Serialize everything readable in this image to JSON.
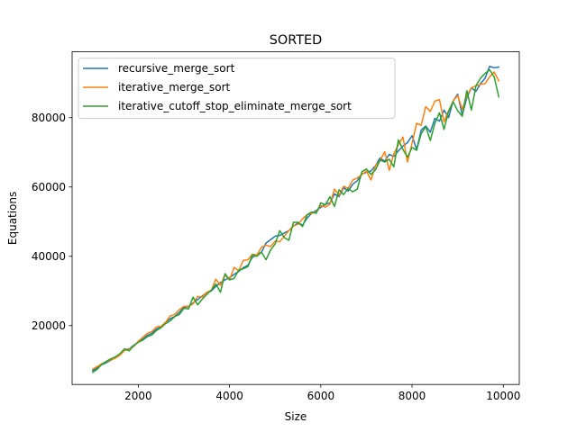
{
  "chart_data": {
    "type": "line",
    "title": "SORTED",
    "xlabel": "Size",
    "ylabel": "Equations",
    "xlim": [
      550,
      10350
    ],
    "ylim": [
      3000,
      99000
    ],
    "xticks": [
      2000,
      4000,
      6000,
      8000,
      10000
    ],
    "yticks": [
      20000,
      40000,
      60000,
      80000
    ],
    "grid": false,
    "legend_position": "upper-left",
    "x": [
      1000,
      1100,
      1200,
      1300,
      1400,
      1500,
      1600,
      1700,
      1800,
      1900,
      2000,
      2100,
      2200,
      2300,
      2400,
      2500,
      2600,
      2700,
      2800,
      2900,
      3000,
      3100,
      3200,
      3300,
      3400,
      3500,
      3600,
      3700,
      3800,
      3900,
      4000,
      4100,
      4200,
      4300,
      4400,
      4500,
      4600,
      4700,
      4800,
      4900,
      5000,
      5100,
      5200,
      5300,
      5400,
      5500,
      5600,
      5700,
      5800,
      5900,
      6000,
      6100,
      6200,
      6300,
      6400,
      6500,
      6600,
      6700,
      6800,
      6900,
      7000,
      7100,
      7200,
      7300,
      7400,
      7500,
      7600,
      7700,
      7800,
      7900,
      8000,
      8100,
      8200,
      8300,
      8400,
      8500,
      8600,
      8700,
      8800,
      8900,
      9000,
      9100,
      9200,
      9300,
      9400,
      9500,
      9600,
      9700,
      9800,
      9900
    ],
    "series": [
      {
        "name": "recursive_merge_sort",
        "color": "#1f77b4",
        "values": [
          7000,
          7800,
          8700,
          9300,
          10000,
          10800,
          11600,
          13000,
          13300,
          14300,
          15300,
          16100,
          17200,
          17800,
          19000,
          19700,
          21000,
          22000,
          22600,
          23800,
          25300,
          25500,
          26500,
          27500,
          28500,
          29500,
          30000,
          31300,
          32400,
          33200,
          33800,
          34800,
          35600,
          36700,
          37400,
          39700,
          40400,
          41200,
          43800,
          44800,
          45800,
          46000,
          46700,
          47400,
          48700,
          49600,
          49000,
          51000,
          52400,
          53200,
          54100,
          55000,
          55400,
          58000,
          57200,
          59800,
          58800,
          60800,
          61800,
          63800,
          64200,
          64600,
          66200,
          68400,
          67400,
          69400,
          68800,
          70400,
          71800,
          72800,
          74800,
          70800,
          76400,
          77600,
          75800,
          79800,
          79000,
          82200,
          80000,
          84800,
          86800,
          80800,
          85800,
          88600,
          87600,
          89800,
          91400,
          94800,
          94400,
          94600
        ]
      },
      {
        "name": "iterative_merge_sort",
        "color": "#ff7f0e",
        "values": [
          7400,
          8200,
          9000,
          9600,
          10100,
          10600,
          11500,
          12800,
          13200,
          14000,
          15500,
          16600,
          17800,
          18300,
          19600,
          19800,
          21000,
          22800,
          23200,
          24600,
          25600,
          25600,
          26200,
          28400,
          28200,
          29600,
          30200,
          33400,
          31600,
          34600,
          33200,
          36800,
          35800,
          38800,
          39000,
          40600,
          40400,
          42600,
          43200,
          42800,
          44400,
          44200,
          45800,
          47400,
          48800,
          49200,
          50800,
          52000,
          52400,
          52800,
          54600,
          54200,
          55000,
          59400,
          57600,
          60200,
          59600,
          62000,
          62600,
          63600,
          64600,
          62000,
          66200,
          67600,
          70200,
          64800,
          69600,
          72200,
          74400,
          67200,
          72600,
          78400,
          77800,
          83200,
          81800,
          84800,
          85200,
          78800,
          82000,
          84800,
          86400,
          82400,
          86400,
          88600,
          89200,
          89600,
          89800,
          91800,
          93200,
          90600
        ]
      },
      {
        "name": "iterative_cutoff_stop_eliminate_merge_sort",
        "color": "#2ca02c",
        "values": [
          6500,
          7400,
          8800,
          9700,
          10400,
          11000,
          11900,
          13300,
          12700,
          14200,
          15200,
          15800,
          16800,
          17300,
          18600,
          19400,
          20600,
          21400,
          22600,
          23200,
          25000,
          24800,
          28200,
          26000,
          27600,
          29000,
          30200,
          32000,
          29600,
          35000,
          33200,
          33600,
          36000,
          36400,
          37000,
          40400,
          40000,
          41200,
          39000,
          41800,
          43600,
          47400,
          45400,
          44600,
          49800,
          49800,
          48600,
          52000,
          52800,
          52400,
          55400,
          54800,
          57200,
          54400,
          59200,
          57800,
          59600,
          58600,
          59400,
          64400,
          65200,
          63600,
          65000,
          67800,
          67200,
          68000,
          65800,
          73600,
          70800,
          68600,
          71400,
          70600,
          75400,
          77400,
          73400,
          78400,
          81400,
          76600,
          81800,
          84600,
          82000,
          80400,
          87800,
          82200,
          89200,
          91400,
          92800,
          93800,
          91800,
          86000
        ]
      }
    ]
  }
}
